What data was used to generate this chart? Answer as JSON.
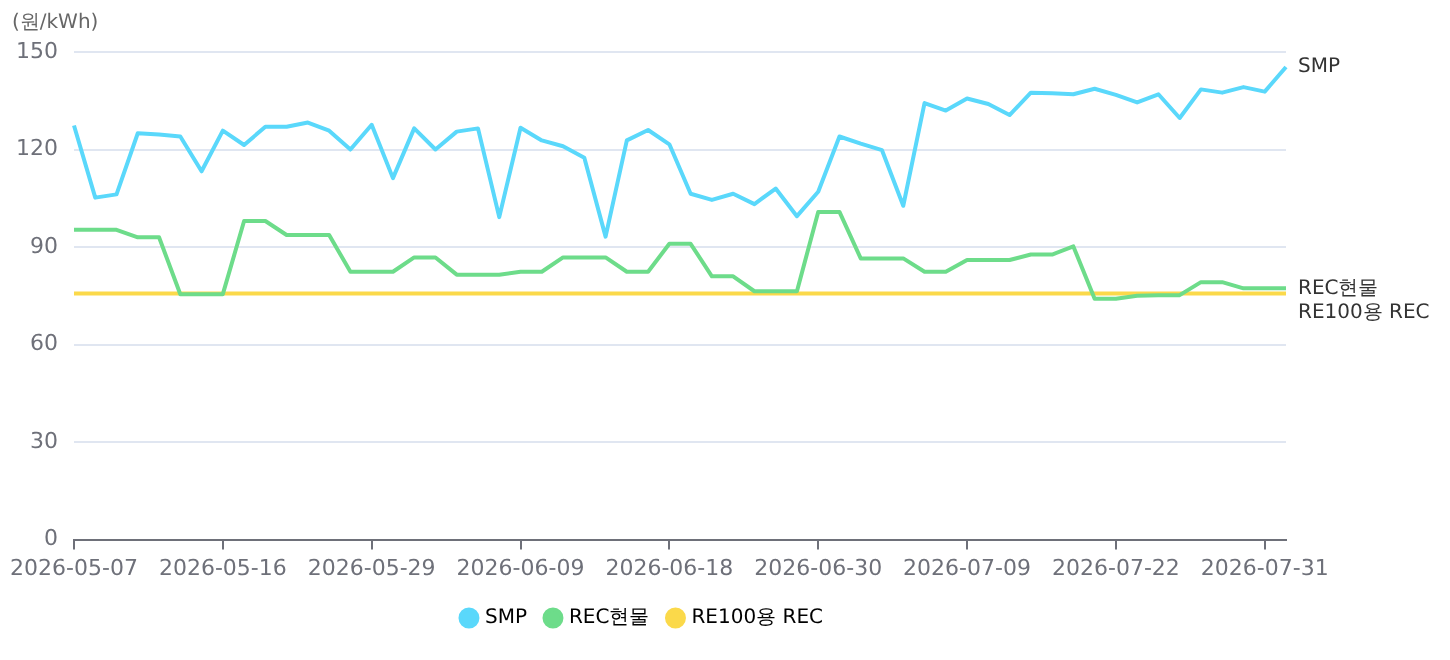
{
  "chart_data": {
    "type": "line",
    "ylabel": "(원/kWh)",
    "categories": [
      "2026-05-07",
      null,
      null,
      null,
      null,
      null,
      null,
      "2026-05-16",
      null,
      null,
      null,
      null,
      null,
      null,
      "2026-05-29",
      null,
      null,
      null,
      null,
      null,
      null,
      "2026-06-09",
      null,
      null,
      null,
      null,
      null,
      null,
      "2026-06-18",
      null,
      null,
      null,
      null,
      null,
      null,
      "2026-06-30",
      null,
      null,
      null,
      null,
      null,
      null,
      "2026-07-09",
      null,
      null,
      null,
      null,
      null,
      null,
      "2026-07-22",
      null,
      null,
      null,
      null,
      null,
      null,
      "2026-07-31",
      null
    ],
    "series": [
      {
        "name": "SMP",
        "color": "#5ad8fb",
        "values": [
          127.4,
          105.2,
          106.2,
          125,
          124.6,
          124,
          113.3,
          125.8,
          121.4,
          127,
          127,
          128.3,
          125.8,
          120,
          127.6,
          111.2,
          126.5,
          120,
          125.5,
          126.5,
          99.2,
          126.7,
          122.8,
          121,
          117.5,
          93.2,
          122.8,
          126,
          121.6,
          106.4,
          104.5,
          106.4,
          103.2,
          108,
          99.5,
          107,
          124,
          121.8,
          119.8,
          102.7,
          134.3,
          132,
          135.7,
          134,
          130.6,
          137.5,
          137.3,
          137,
          138.7,
          136.8,
          134.5,
          137,
          129.7,
          138.5,
          137.5,
          139.2,
          137.8,
          145.4
        ]
      },
      {
        "name": "REC현물",
        "color": "#6ddc8a",
        "values": [
          95.3,
          95.3,
          95.3,
          93,
          93,
          75.5,
          75.5,
          75.5,
          98,
          98,
          93.7,
          93.7,
          93.7,
          82.4,
          82.4,
          82.4,
          86.8,
          86.8,
          81.5,
          81.5,
          81.5,
          82.4,
          82.4,
          86.8,
          86.8,
          86.8,
          82.4,
          82.4,
          91,
          91,
          81,
          81,
          76.4,
          76.4,
          76.4,
          100.8,
          100.8,
          86.5,
          86.5,
          86.5,
          82.4,
          82.4,
          86,
          86,
          86,
          87.7,
          87.7,
          90.2,
          74.1,
          74.1,
          75,
          75.2,
          75.2,
          79.2,
          79.2,
          77.3,
          77.3,
          77.3
        ]
      },
      {
        "name": "RE100용 REC",
        "color": "#fbd94a",
        "values": [
          75.7,
          75.7,
          75.7,
          75.7,
          75.7,
          75.7,
          75.7,
          75.7,
          75.7,
          75.7,
          75.7,
          75.7,
          75.7,
          75.7,
          75.7,
          75.7,
          75.7,
          75.7,
          75.7,
          75.7,
          75.7,
          75.7,
          75.7,
          75.7,
          75.7,
          75.7,
          75.7,
          75.7,
          75.7,
          75.7,
          75.7,
          75.7,
          75.7,
          75.7,
          75.7,
          75.7,
          75.7,
          75.7,
          75.7,
          75.7,
          75.7,
          75.7,
          75.7,
          75.7,
          75.7,
          75.7,
          75.7,
          75.7,
          75.7,
          75.7,
          75.7,
          75.7,
          75.7,
          75.7,
          75.7,
          75.7,
          75.7,
          75.7
        ]
      }
    ],
    "ylim": [
      0,
      150
    ],
    "yticks": [
      0,
      30,
      60,
      90,
      120,
      150
    ],
    "grid": "y",
    "legend": "bottom",
    "marker": "none",
    "line_style": "solid"
  }
}
